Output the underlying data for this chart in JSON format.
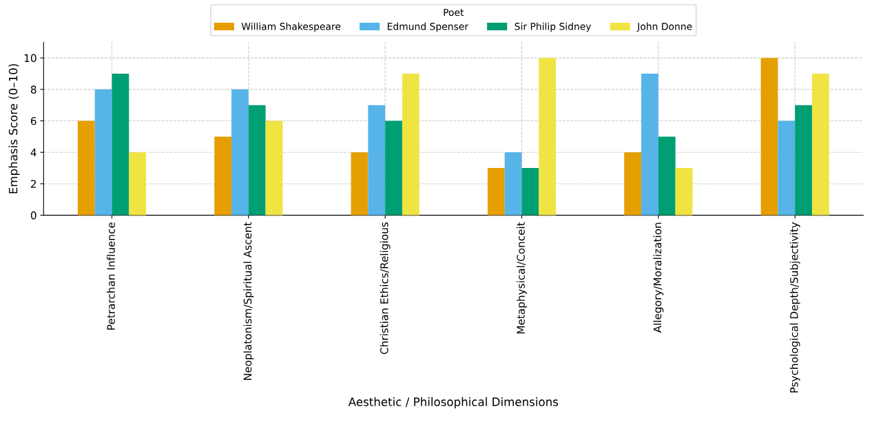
{
  "chart_data": {
    "type": "bar",
    "xlabel": "Aesthetic / Philosophical Dimensions",
    "ylabel": "Emphasis Score (0–10)",
    "legend_title": "Poet",
    "categories": [
      "Petrarchan Influence",
      "Neoplatonism/Spiritual Ascent",
      "Christian Ethics/Religious",
      "Metaphysical/Conceit",
      "Allegory/Moralization",
      "Psychological Depth/Subjectivity"
    ],
    "series": [
      {
        "name": "William Shakespeare",
        "color": "#e69f00",
        "values": [
          6,
          5,
          4,
          3,
          4,
          10
        ]
      },
      {
        "name": "Edmund Spenser",
        "color": "#56b4e9",
        "values": [
          8,
          8,
          7,
          4,
          9,
          6
        ]
      },
      {
        "name": "Sir Philip Sidney",
        "color": "#009e73",
        "values": [
          9,
          7,
          6,
          3,
          5,
          7
        ]
      },
      {
        "name": "John Donne",
        "color": "#f0e442",
        "values": [
          4,
          6,
          9,
          10,
          3,
          9
        ]
      }
    ],
    "ylim": [
      0,
      11
    ],
    "yticks": [
      0,
      2,
      4,
      6,
      8,
      10
    ],
    "grid": true,
    "legend": "top"
  }
}
